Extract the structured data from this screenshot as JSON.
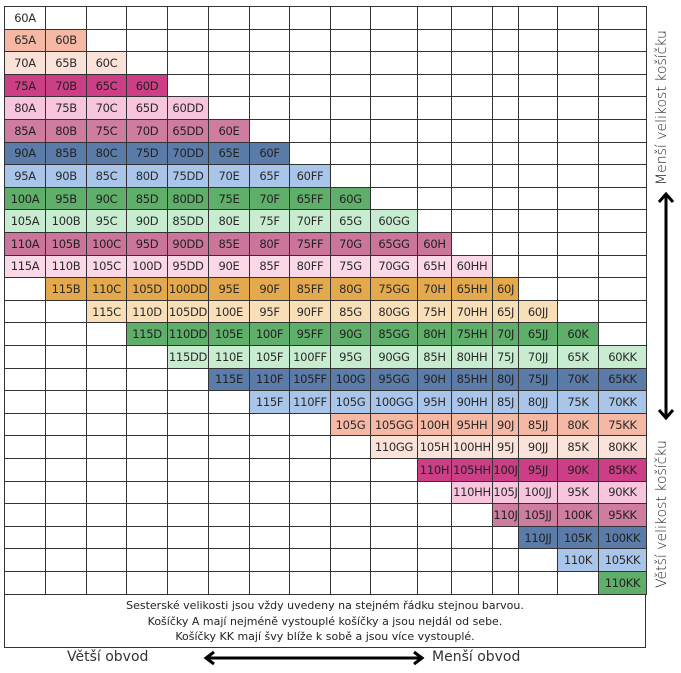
{
  "title": "Sister sizes bra chart",
  "colors": {
    "salmon": "#f4b8a4",
    "peach_light": "#fbe2d8",
    "magenta": "#cc3f87",
    "pink_light": "#f8c5df",
    "rose": "#cf7ca1",
    "steel_blue": "#5b7ca8",
    "light_blue": "#aac5ea",
    "green": "#5fae69",
    "green_light": "#c7ecd0",
    "rose2": "#cb759b",
    "pink_pale": "#fad8e8",
    "orange": "#e3a94c",
    "cream": "#f9dfb8",
    "white": "#ffffff"
  },
  "rows": [
    {
      "start": 0,
      "color": "white",
      "cells": [
        "60A"
      ]
    },
    {
      "start": 0,
      "color": "salmon",
      "cells": [
        "65A",
        "60B"
      ]
    },
    {
      "start": 0,
      "color": "peach_light",
      "cells": [
        "70A",
        "65B",
        "60C"
      ]
    },
    {
      "start": 0,
      "color": "magenta",
      "cells": [
        "75A",
        "70B",
        "65C",
        "60D"
      ]
    },
    {
      "start": 0,
      "color": "pink_light",
      "cells": [
        "80A",
        "75B",
        "70C",
        "65D",
        "60DD"
      ]
    },
    {
      "start": 0,
      "color": "rose",
      "cells": [
        "85A",
        "80B",
        "75C",
        "70D",
        "65DD",
        "60E"
      ]
    },
    {
      "start": 0,
      "color": "steel_blue",
      "cells": [
        "90A",
        "85B",
        "80C",
        "75D",
        "70DD",
        "65E",
        "60F"
      ]
    },
    {
      "start": 0,
      "color": "light_blue",
      "cells": [
        "95A",
        "90B",
        "85C",
        "80D",
        "75DD",
        "70E",
        "65F",
        "60FF"
      ]
    },
    {
      "start": 0,
      "color": "green",
      "cells": [
        "100A",
        "95B",
        "90C",
        "85D",
        "80DD",
        "75E",
        "70F",
        "65FF",
        "60G"
      ]
    },
    {
      "start": 0,
      "color": "green_light",
      "cells": [
        "105A",
        "100B",
        "95C",
        "90D",
        "85DD",
        "80E",
        "75F",
        "70FF",
        "65G",
        "60GG"
      ]
    },
    {
      "start": 0,
      "color": "rose2",
      "cells": [
        "110A",
        "105B",
        "100C",
        "95D",
        "90DD",
        "85E",
        "80F",
        "75FF",
        "70G",
        "65GG",
        "60H"
      ]
    },
    {
      "start": 0,
      "color": "pink_pale",
      "cells": [
        "115A",
        "110B",
        "105C",
        "100D",
        "95DD",
        "90E",
        "85F",
        "80FF",
        "75G",
        "70GG",
        "65H",
        "60HH"
      ]
    },
    {
      "start": 1,
      "color": "orange",
      "cells": [
        "115B",
        "110C",
        "105D",
        "100DD",
        "95E",
        "90F",
        "85FF",
        "80G",
        "75GG",
        "70H",
        "65HH",
        "60J"
      ]
    },
    {
      "start": 2,
      "color": "cream",
      "cells": [
        "115C",
        "110D",
        "105DD",
        "100E",
        "95F",
        "90FF",
        "85G",
        "80GG",
        "75H",
        "70HH",
        "65J",
        "60JJ"
      ]
    },
    {
      "start": 3,
      "color": "green",
      "cells": [
        "115D",
        "110DD",
        "105E",
        "100F",
        "95FF",
        "90G",
        "85GG",
        "80H",
        "75HH",
        "70J",
        "65JJ",
        "60K"
      ]
    },
    {
      "start": 4,
      "color": "green_light",
      "cells": [
        "115DD",
        "110E",
        "105F",
        "100FF",
        "95G",
        "90GG",
        "85H",
        "80HH",
        "75J",
        "70JJ",
        "65K",
        "60KK"
      ]
    },
    {
      "start": 5,
      "color": "steel_blue",
      "cells": [
        "115E",
        "110F",
        "105FF",
        "100G",
        "95GG",
        "90H",
        "85HH",
        "80J",
        "75JJ",
        "70K",
        "65KK"
      ]
    },
    {
      "start": 6,
      "color": "light_blue",
      "cells": [
        "115F",
        "110FF",
        "105G",
        "100GG",
        "95H",
        "90HH",
        "85J",
        "80JJ",
        "75K",
        "70KK"
      ]
    },
    {
      "start": 8,
      "color": "salmon",
      "cells": [
        "105G",
        "105GG",
        "100H",
        "95HH",
        "90J",
        "85JJ",
        "80K",
        "75KK"
      ]
    },
    {
      "start": 9,
      "color": "peach_light",
      "cells": [
        "110GG",
        "105H",
        "100HH",
        "95J",
        "90JJ",
        "85K",
        "80KK"
      ]
    },
    {
      "start": 10,
      "color": "magenta",
      "cells": [
        "110H",
        "105HH",
        "100J",
        "95JJ",
        "90K",
        "85KK"
      ]
    },
    {
      "start": 11,
      "color": "pink_light",
      "cells": [
        "110HH",
        "105J",
        "100JJ",
        "95K",
        "90KK"
      ]
    },
    {
      "start": 12,
      "color": "rose",
      "cells": [
        "110J",
        "105JJ",
        "100K",
        "95KK"
      ]
    },
    {
      "start": 13,
      "color": "steel_blue",
      "cells": [
        "110JJ",
        "105K",
        "100KK"
      ]
    },
    {
      "start": 14,
      "color": "light_blue",
      "cells": [
        "110K",
        "105KK"
      ]
    },
    {
      "start": 15,
      "color": "green",
      "cells": [
        "110KK"
      ]
    }
  ],
  "footer": {
    "line1": "Sesterské velikosti jsou vždy uvedeny na stejném řádku stejnou barvou.",
    "line2": "Košíčky A mají nejméně vystouplé košíčky a jsou nejdál od sebe.",
    "line3": "Košíčky KK mají švy blíže k sobě a jsou více vystouplé."
  },
  "axes": {
    "top_right": "Menší velikost košíčku",
    "bottom_right": "Větší velikost košíčku",
    "bottom_left": "Větší obvod",
    "bottom_right_horizontal": "Menší obvod"
  }
}
